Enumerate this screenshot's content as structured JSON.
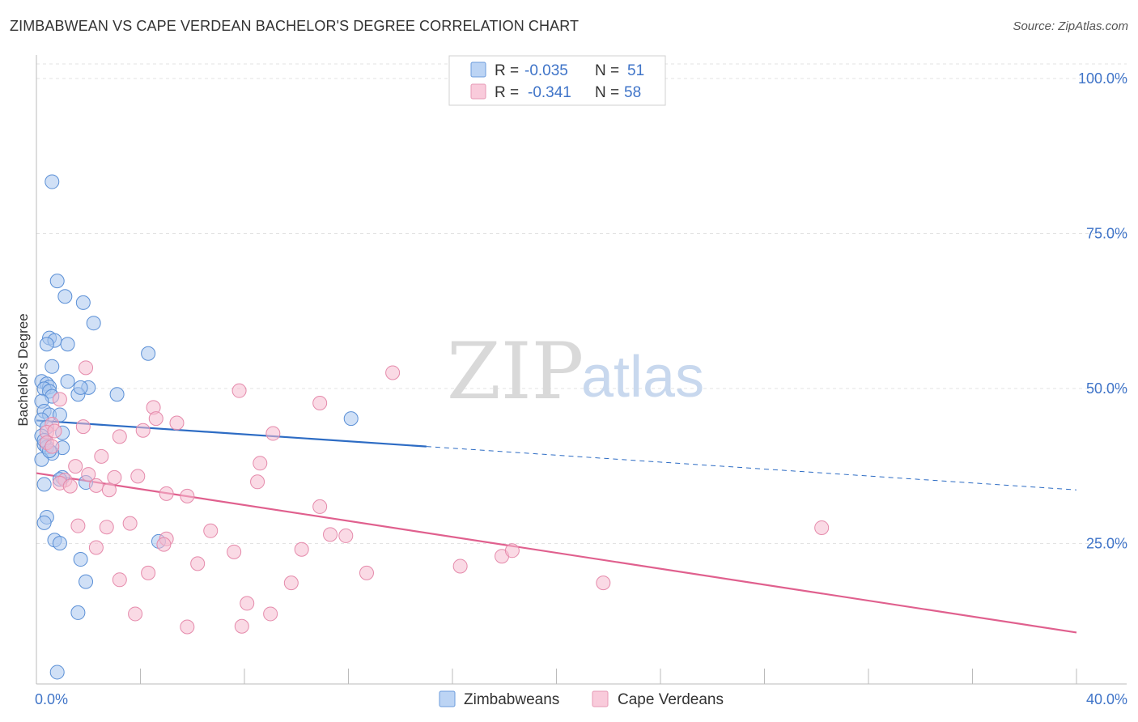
{
  "title": "ZIMBABWEAN VS CAPE VERDEAN BACHELOR'S DEGREE CORRELATION CHART",
  "source": "Source: ZipAtlas.com",
  "watermark": {
    "zip": "ZIP",
    "atlas": "atlas"
  },
  "colors": {
    "blue_fill": "#a9c7ee",
    "blue_stroke": "#5a8fd6",
    "blue_line": "#2d6cc4",
    "pink_fill": "#f6bcd0",
    "pink_stroke": "#e58aab",
    "pink_line": "#e0608e",
    "axis_text": "#3f74c8",
    "grid": "#e3e3e3"
  },
  "legend": {
    "rows": [
      {
        "r_label": "R =",
        "r_value": "-0.035",
        "n_label": "N =",
        "n_value": "51"
      },
      {
        "r_label": "R =",
        "r_value": "-0.341",
        "n_label": "N =",
        "n_value": "58"
      }
    ]
  },
  "chart_data": {
    "type": "scatter",
    "title": "ZIMBABWEAN VS CAPE VERDEAN BACHELOR'S DEGREE CORRELATION CHART",
    "xlabel": "",
    "ylabel": "Bachelor's Degree",
    "xlim": [
      0,
      40
    ],
    "ylim": [
      0,
      100
    ],
    "x_tick_labels": {
      "min": "0.0%",
      "max": "40.0%"
    },
    "y_ticks": [
      {
        "value": 100,
        "label": "100.0%"
      },
      {
        "value": 75,
        "label": "75.0%"
      },
      {
        "value": 50,
        "label": "50.0%"
      },
      {
        "value": 25,
        "label": "25.0%"
      }
    ],
    "grid": true,
    "series": [
      {
        "name": "Zimbabweans",
        "color": "blue",
        "trend": {
          "x0": 0,
          "y0": 42.5,
          "x1": 40,
          "y1": 31.3,
          "solid_until": 15
        },
        "points": [
          [
            0.6,
            81
          ],
          [
            0.8,
            65
          ],
          [
            1.1,
            62.5
          ],
          [
            1.8,
            61.5
          ],
          [
            2.2,
            58.2
          ],
          [
            0.5,
            55.8
          ],
          [
            0.7,
            55.4
          ],
          [
            0.4,
            54.8
          ],
          [
            1.2,
            54.8
          ],
          [
            4.3,
            53.3
          ],
          [
            0.6,
            51.2
          ],
          [
            0.2,
            48.8
          ],
          [
            0.4,
            48.4
          ],
          [
            0.5,
            47.9
          ],
          [
            1.2,
            48.8
          ],
          [
            2.0,
            47.8
          ],
          [
            0.3,
            47.6
          ],
          [
            0.5,
            47.2
          ],
          [
            1.6,
            46.7
          ],
          [
            3.1,
            46.7
          ],
          [
            0.6,
            46.4
          ],
          [
            0.2,
            45.6
          ],
          [
            0.3,
            44.0
          ],
          [
            0.5,
            43.4
          ],
          [
            0.9,
            43.4
          ],
          [
            12.1,
            42.8
          ],
          [
            0.2,
            42.6
          ],
          [
            0.4,
            41.4
          ],
          [
            1.0,
            40.5
          ],
          [
            0.2,
            40.0
          ],
          [
            0.3,
            38.6
          ],
          [
            0.4,
            38.2
          ],
          [
            1.0,
            38.1
          ],
          [
            0.6,
            37.2
          ],
          [
            0.2,
            36.2
          ],
          [
            1.0,
            33.3
          ],
          [
            1.9,
            32.5
          ],
          [
            0.3,
            32.2
          ],
          [
            0.4,
            26.9
          ],
          [
            0.3,
            26.0
          ],
          [
            0.7,
            23.2
          ],
          [
            0.9,
            22.7
          ],
          [
            4.7,
            23.0
          ],
          [
            1.7,
            20.1
          ],
          [
            1.9,
            16.5
          ],
          [
            1.6,
            11.5
          ],
          [
            0.8,
            1.9
          ],
          [
            1.7,
            47.8
          ],
          [
            0.3,
            39.3
          ],
          [
            0.9,
            33.0
          ],
          [
            0.5,
            37.6
          ]
        ]
      },
      {
        "name": "Cape Verdeans",
        "color": "pink",
        "trend": {
          "x0": 0,
          "y0": 34.0,
          "x1": 40,
          "y1": 8.3
        },
        "points": [
          [
            1.9,
            51.0
          ],
          [
            13.7,
            50.2
          ],
          [
            7.8,
            47.3
          ],
          [
            10.9,
            45.3
          ],
          [
            0.9,
            45.9
          ],
          [
            4.5,
            44.6
          ],
          [
            4.6,
            42.8
          ],
          [
            5.4,
            42.1
          ],
          [
            0.6,
            41.9
          ],
          [
            1.8,
            41.5
          ],
          [
            4.1,
            40.9
          ],
          [
            0.4,
            40.6
          ],
          [
            9.1,
            40.4
          ],
          [
            3.2,
            39.9
          ],
          [
            0.4,
            38.9
          ],
          [
            0.6,
            38.3
          ],
          [
            2.5,
            36.7
          ],
          [
            8.6,
            35.6
          ],
          [
            1.5,
            35.1
          ],
          [
            2.0,
            33.8
          ],
          [
            3.9,
            33.5
          ],
          [
            3.0,
            33.3
          ],
          [
            1.1,
            32.9
          ],
          [
            0.9,
            32.4
          ],
          [
            8.5,
            32.6
          ],
          [
            2.3,
            32.0
          ],
          [
            1.3,
            31.9
          ],
          [
            2.8,
            31.3
          ],
          [
            5.0,
            30.7
          ],
          [
            5.8,
            30.3
          ],
          [
            10.9,
            28.6
          ],
          [
            3.6,
            25.9
          ],
          [
            1.6,
            25.5
          ],
          [
            2.7,
            25.3
          ],
          [
            6.7,
            24.7
          ],
          [
            11.3,
            24.1
          ],
          [
            11.9,
            23.9
          ],
          [
            5.0,
            23.4
          ],
          [
            4.9,
            22.5
          ],
          [
            2.3,
            22.0
          ],
          [
            10.2,
            21.7
          ],
          [
            7.6,
            21.3
          ],
          [
            17.9,
            20.6
          ],
          [
            18.3,
            21.5
          ],
          [
            6.2,
            19.4
          ],
          [
            16.3,
            19.0
          ],
          [
            4.3,
            17.9
          ],
          [
            12.7,
            17.9
          ],
          [
            3.2,
            16.8
          ],
          [
            9.8,
            16.3
          ],
          [
            21.8,
            16.3
          ],
          [
            8.1,
            13.0
          ],
          [
            3.8,
            11.3
          ],
          [
            9.0,
            11.3
          ],
          [
            5.8,
            9.2
          ],
          [
            7.9,
            9.3
          ],
          [
            30.2,
            25.2
          ],
          [
            0.7,
            40.8
          ]
        ]
      }
    ]
  }
}
